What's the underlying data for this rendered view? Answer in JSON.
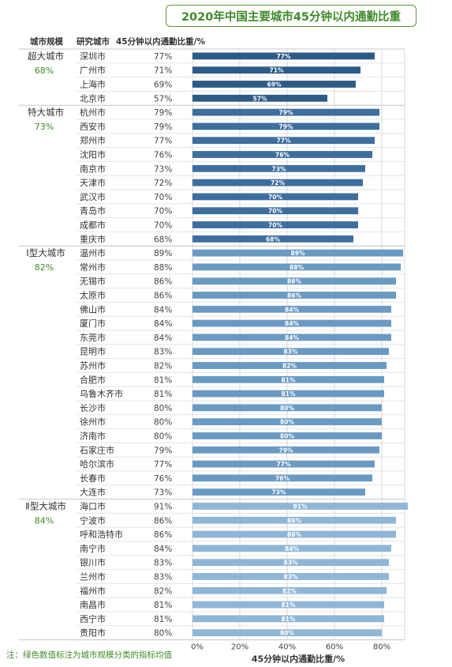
{
  "chart_data": {
    "type": "bar",
    "orientation": "horizontal",
    "title": "2020年中国主要城市45分钟以内通勤比重",
    "col_headers": {
      "group": "城市规模",
      "city": "研究城市",
      "value": "45分钟以内通勤比重/%"
    },
    "xlabel": "45分钟以内通勤比重/%",
    "xlim": [
      0,
      100
    ],
    "xticks": [
      "0%",
      "20%",
      "40%",
      "60%",
      "80%"
    ],
    "grid": true,
    "note": "注：绿色数值标注为城市规模分类的指标均值",
    "colors": {
      "group_label": "#3f8a2a",
      "bars": [
        "#2e5b86",
        "#3d6e9e",
        "#6a9ac2",
        "#8fb6d6"
      ]
    },
    "groups": [
      {
        "name": "超大城市",
        "mean": "68%",
        "cities": [
          "深圳市",
          "广州市",
          "上海市",
          "北京市"
        ],
        "values": [
          77,
          71,
          69,
          57
        ]
      },
      {
        "name": "特大城市",
        "mean": "73%",
        "cities": [
          "杭州市",
          "西安市",
          "郑州市",
          "沈阳市",
          "南京市",
          "天津市",
          "武汉市",
          "青岛市",
          "成都市",
          "重庆市"
        ],
        "values": [
          79,
          79,
          77,
          76,
          73,
          72,
          70,
          70,
          70,
          68
        ]
      },
      {
        "name": "Ⅰ型大城市",
        "mean": "82%",
        "cities": [
          "温州市",
          "常州市",
          "无锡市",
          "太原市",
          "佛山市",
          "厦门市",
          "东莞市",
          "昆明市",
          "苏州市",
          "合肥市",
          "乌鲁木齐市",
          "长沙市",
          "徐州市",
          "济南市",
          "石家庄市",
          "哈尔滨市",
          "长春市",
          "大连市"
        ],
        "values": [
          89,
          88,
          86,
          86,
          84,
          84,
          84,
          83,
          82,
          81,
          81,
          80,
          80,
          80,
          79,
          77,
          76,
          73
        ]
      },
      {
        "name": "Ⅱ型大城市",
        "mean": "84%",
        "cities": [
          "海口市",
          "宁波市",
          "呼和浩特市",
          "南宁市",
          "银川市",
          "兰州市",
          "福州市",
          "南昌市",
          "西宁市",
          "贵阳市"
        ],
        "values": [
          91,
          86,
          86,
          84,
          83,
          83,
          82,
          81,
          81,
          80
        ]
      }
    ]
  }
}
